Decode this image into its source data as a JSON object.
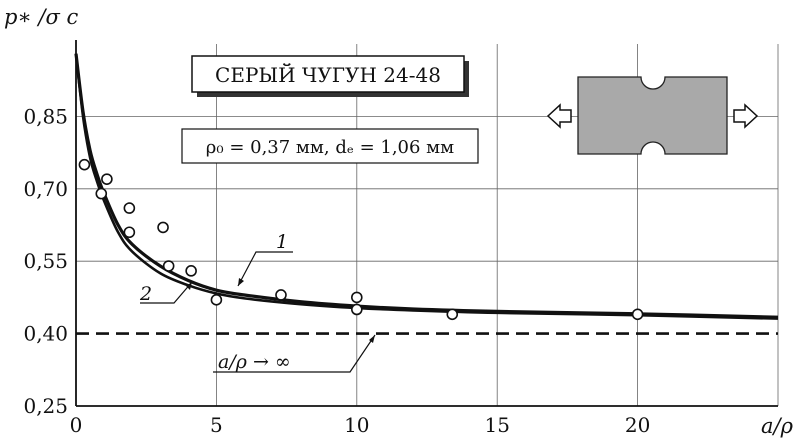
{
  "chart_data": {
    "type": "line",
    "ylabel": "p∗ /σ c",
    "xlabel": "a/ρ",
    "xlim": [
      0,
      25
    ],
    "ylim": [
      0.25,
      1.0
    ],
    "x_ticks": [
      "0",
      "5",
      "10",
      "15",
      "20"
    ],
    "y_ticks": [
      "0,25",
      "0,40",
      "0,55",
      "0,70",
      "0,85"
    ],
    "grid": true,
    "title_box": "СЕРЫЙ ЧУГУН 24-48",
    "params_box": "ρ₀ = 0,37 мм, dₑ = 1,06 мм",
    "asymptote": {
      "y": 0.4,
      "label": "a/ρ → ∞"
    },
    "series": [
      {
        "name": "1",
        "x": [
          0,
          0.25,
          0.5,
          0.75,
          1,
          1.5,
          2,
          3,
          4,
          5,
          6,
          8,
          10,
          12,
          15,
          20,
          25
        ],
        "y": [
          0.98,
          0.86,
          0.78,
          0.73,
          0.69,
          0.625,
          0.585,
          0.54,
          0.51,
          0.49,
          0.48,
          0.466,
          0.457,
          0.451,
          0.446,
          0.441,
          0.434
        ]
      },
      {
        "name": "2",
        "x": [
          0,
          0.25,
          0.5,
          0.75,
          1,
          1.5,
          2,
          3,
          4,
          5,
          6,
          8,
          10,
          12,
          15,
          20,
          25
        ],
        "y": [
          0.98,
          0.85,
          0.765,
          0.715,
          0.675,
          0.61,
          0.57,
          0.525,
          0.5,
          0.483,
          0.473,
          0.461,
          0.453,
          0.448,
          0.443,
          0.438,
          0.431
        ]
      }
    ],
    "points": [
      [
        0.3,
        0.75
      ],
      [
        0.9,
        0.69
      ],
      [
        1.1,
        0.72
      ],
      [
        1.9,
        0.66
      ],
      [
        1.9,
        0.61
      ],
      [
        3.1,
        0.62
      ],
      [
        3.3,
        0.54
      ],
      [
        4.1,
        0.53
      ],
      [
        5.0,
        0.47
      ],
      [
        7.3,
        0.48
      ],
      [
        10.0,
        0.475
      ],
      [
        10.0,
        0.45
      ],
      [
        13.4,
        0.44
      ],
      [
        20.0,
        0.44
      ]
    ]
  }
}
